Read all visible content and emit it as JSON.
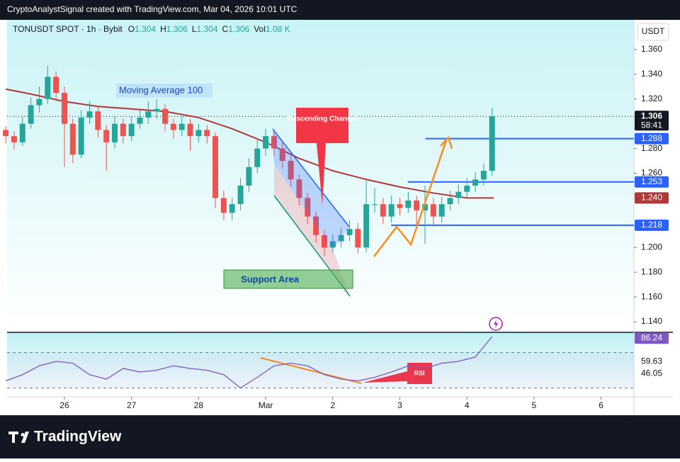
{
  "header": {
    "text": "CryptoAnalystSignal created with TradingView.com, Mar 04, 2026 10:01 UTC"
  },
  "footer": {
    "brand": "TradingView"
  },
  "chart_data": {
    "type": "candlestick",
    "symbol": "TONUSDT SPOT · 1h · Bybit",
    "legend": [
      {
        "key": "O",
        "value": 1.304
      },
      {
        "key": "H",
        "value": 1.306
      },
      {
        "key": "L",
        "value": 1.304
      },
      {
        "key": "C",
        "value": 1.306
      },
      {
        "key": "Vol",
        "value": "1.08 K"
      }
    ],
    "currency": "USDT",
    "x": [
      -0.875,
      -0.75,
      -0.625,
      -0.5,
      -0.375,
      -0.25,
      -0.125,
      0,
      0.125,
      0.25,
      0.375,
      0.5,
      0.625,
      0.75,
      0.875,
      1,
      1.125,
      1.25,
      1.375,
      1.5,
      1.625,
      1.75,
      1.875,
      2,
      2.125,
      2.25,
      2.375,
      2.5,
      2.625,
      2.75,
      2.875,
      3,
      3.125,
      3.25,
      3.375,
      3.5,
      3.625,
      3.75,
      3.875,
      4,
      4.125,
      4.25,
      4.375,
      4.5,
      4.625,
      4.75,
      4.875,
      5,
      5.125,
      5.25,
      5.375,
      5.5,
      5.625,
      5.75,
      5.875,
      6,
      6.125,
      6.25,
      6.375
    ],
    "candles": [
      [
        1.295,
        1.298,
        1.284,
        1.29
      ],
      [
        1.29,
        1.294,
        1.279,
        1.285
      ],
      [
        1.285,
        1.306,
        1.282,
        1.3
      ],
      [
        1.3,
        1.321,
        1.296,
        1.315
      ],
      [
        1.315,
        1.33,
        1.309,
        1.32
      ],
      [
        1.32,
        1.347,
        1.316,
        1.338
      ],
      [
        1.338,
        1.342,
        1.318,
        1.325
      ],
      [
        1.325,
        1.33,
        1.265,
        1.3
      ],
      [
        1.3,
        1.304,
        1.268,
        1.275
      ],
      [
        1.275,
        1.311,
        1.272,
        1.305
      ],
      [
        1.305,
        1.318,
        1.3,
        1.31
      ],
      [
        1.31,
        1.314,
        1.289,
        1.295
      ],
      [
        1.295,
        1.299,
        1.262,
        1.285
      ],
      [
        1.285,
        1.306,
        1.28,
        1.3
      ],
      [
        1.3,
        1.304,
        1.284,
        1.29
      ],
      [
        1.29,
        1.306,
        1.286,
        1.3
      ],
      [
        1.3,
        1.311,
        1.296,
        1.305
      ],
      [
        1.305,
        1.318,
        1.3,
        1.31
      ],
      [
        1.31,
        1.32,
        1.304,
        1.312
      ],
      [
        1.312,
        1.316,
        1.294,
        1.3
      ],
      [
        1.3,
        1.304,
        1.288,
        1.295
      ],
      [
        1.295,
        1.306,
        1.29,
        1.3
      ],
      [
        1.3,
        1.304,
        1.278,
        1.29
      ],
      [
        1.29,
        1.3,
        1.285,
        1.295
      ],
      [
        1.295,
        1.299,
        1.284,
        1.29
      ],
      [
        1.29,
        1.293,
        1.232,
        1.24
      ],
      [
        1.24,
        1.246,
        1.222,
        1.228
      ],
      [
        1.228,
        1.24,
        1.222,
        1.235
      ],
      [
        1.235,
        1.256,
        1.23,
        1.25
      ],
      [
        1.25,
        1.272,
        1.245,
        1.265
      ],
      [
        1.265,
        1.288,
        1.26,
        1.28
      ],
      [
        1.28,
        1.296,
        1.274,
        1.29
      ],
      [
        1.29,
        1.294,
        1.274,
        1.28
      ],
      [
        1.28,
        1.285,
        1.264,
        1.27
      ],
      [
        1.27,
        1.274,
        1.249,
        1.255
      ],
      [
        1.255,
        1.259,
        1.234,
        1.24
      ],
      [
        1.24,
        1.244,
        1.219,
        1.225
      ],
      [
        1.225,
        1.229,
        1.204,
        1.21
      ],
      [
        1.21,
        1.214,
        1.193,
        1.2
      ],
      [
        1.2,
        1.211,
        1.196,
        1.205
      ],
      [
        1.205,
        1.216,
        1.2,
        1.21
      ],
      [
        1.21,
        1.222,
        1.205,
        1.215
      ],
      [
        1.215,
        1.22,
        1.195,
        1.2
      ],
      [
        1.2,
        1.255,
        1.196,
        1.235
      ],
      [
        1.235,
        1.248,
        1.228,
        1.235
      ],
      [
        1.235,
        1.24,
        1.219,
        1.225
      ],
      [
        1.225,
        1.242,
        1.22,
        1.235
      ],
      [
        1.235,
        1.24,
        1.226,
        1.232
      ],
      [
        1.232,
        1.245,
        1.228,
        1.238
      ],
      [
        1.238,
        1.242,
        1.218,
        1.23
      ],
      [
        1.23,
        1.25,
        1.203,
        1.235
      ],
      [
        1.235,
        1.24,
        1.218,
        1.225
      ],
      [
        1.225,
        1.241,
        1.22,
        1.235
      ],
      [
        1.235,
        1.246,
        1.23,
        1.24
      ],
      [
        1.24,
        1.251,
        1.235,
        1.245
      ],
      [
        1.245,
        1.256,
        1.24,
        1.25
      ],
      [
        1.25,
        1.261,
        1.245,
        1.255
      ],
      [
        1.255,
        1.268,
        1.25,
        1.262
      ],
      [
        1.262,
        1.313,
        1.258,
        1.306
      ]
    ],
    "up_color": "#26a69a",
    "down_color": "#ef5350",
    "moving_average": {
      "name": "Moving Average 100",
      "color": "#b2373a",
      "x": [
        -0.875,
        -0.5,
        0,
        0.5,
        1,
        1.5,
        2,
        2.5,
        3,
        3.5,
        4,
        4.5,
        5,
        5.5,
        6,
        6.4
      ],
      "values": [
        1.328,
        1.324,
        1.318,
        1.314,
        1.312,
        1.31,
        1.305,
        1.296,
        1.285,
        1.272,
        1.262,
        1.255,
        1.249,
        1.244,
        1.24,
        1.24
      ],
      "last_label": {
        "value": 1.24,
        "label": "1.240"
      }
    },
    "levels": [
      {
        "value": 1.288,
        "from": 5.38
      },
      {
        "value": 1.253,
        "from": 5.12
      },
      {
        "value": 1.218,
        "from": 4.87
      }
    ],
    "level_color": "#2962ff",
    "last_price": 1.306,
    "countdown": "58:41",
    "annotations": {
      "channel": "Descending Channel",
      "support": "Support Area",
      "rsi": "RSI"
    },
    "xlim": [
      -0.855,
      8.49
    ],
    "xticks": [
      {
        "value": 0,
        "label": "26"
      },
      {
        "value": 1,
        "label": "27"
      },
      {
        "value": 2,
        "label": "28"
      },
      {
        "value": 3,
        "label": "Mar"
      },
      {
        "value": 4,
        "label": "2"
      },
      {
        "value": 5,
        "label": "3"
      },
      {
        "value": 6,
        "label": "4"
      },
      {
        "value": 7,
        "label": "5"
      },
      {
        "value": 8,
        "label": "6"
      }
    ],
    "ylim": [
      1.132,
      1.384
    ],
    "yticks": [
      {
        "value": 1.14,
        "label": "1.140"
      },
      {
        "value": 1.16,
        "label": "1.160"
      },
      {
        "value": 1.18,
        "label": "1.180"
      },
      {
        "value": 1.2,
        "label": "1.200"
      },
      {
        "value": 1.26,
        "label": "1.260"
      },
      {
        "value": 1.28,
        "label": "1.280"
      },
      {
        "value": 1.32,
        "label": "1.320"
      },
      {
        "value": 1.34,
        "label": "1.340"
      },
      {
        "value": 1.36,
        "label": "1.360"
      }
    ],
    "rsi": {
      "color": "#7e57c2",
      "x": [
        -0.875,
        -0.625,
        -0.375,
        -0.125,
        0.125,
        0.375,
        0.625,
        0.875,
        1.125,
        1.375,
        1.625,
        1.875,
        2.125,
        2.375,
        2.625,
        2.875,
        3.125,
        3.375,
        3.625,
        3.875,
        4.125,
        4.375,
        4.625,
        4.875,
        5.125,
        5.375,
        5.625,
        5.875,
        6.125,
        6.375
      ],
      "values": [
        38,
        45,
        55,
        60,
        58,
        45,
        40,
        52,
        48,
        50,
        55,
        52,
        50,
        45,
        30,
        42,
        55,
        58,
        55,
        45,
        40,
        38,
        42,
        48,
        55,
        52,
        58,
        60,
        65,
        88
      ],
      "ylim": [
        20,
        92
      ],
      "levels": [
        70,
        30
      ],
      "labels": [
        86.24,
        59.63,
        46.05
      ]
    }
  }
}
